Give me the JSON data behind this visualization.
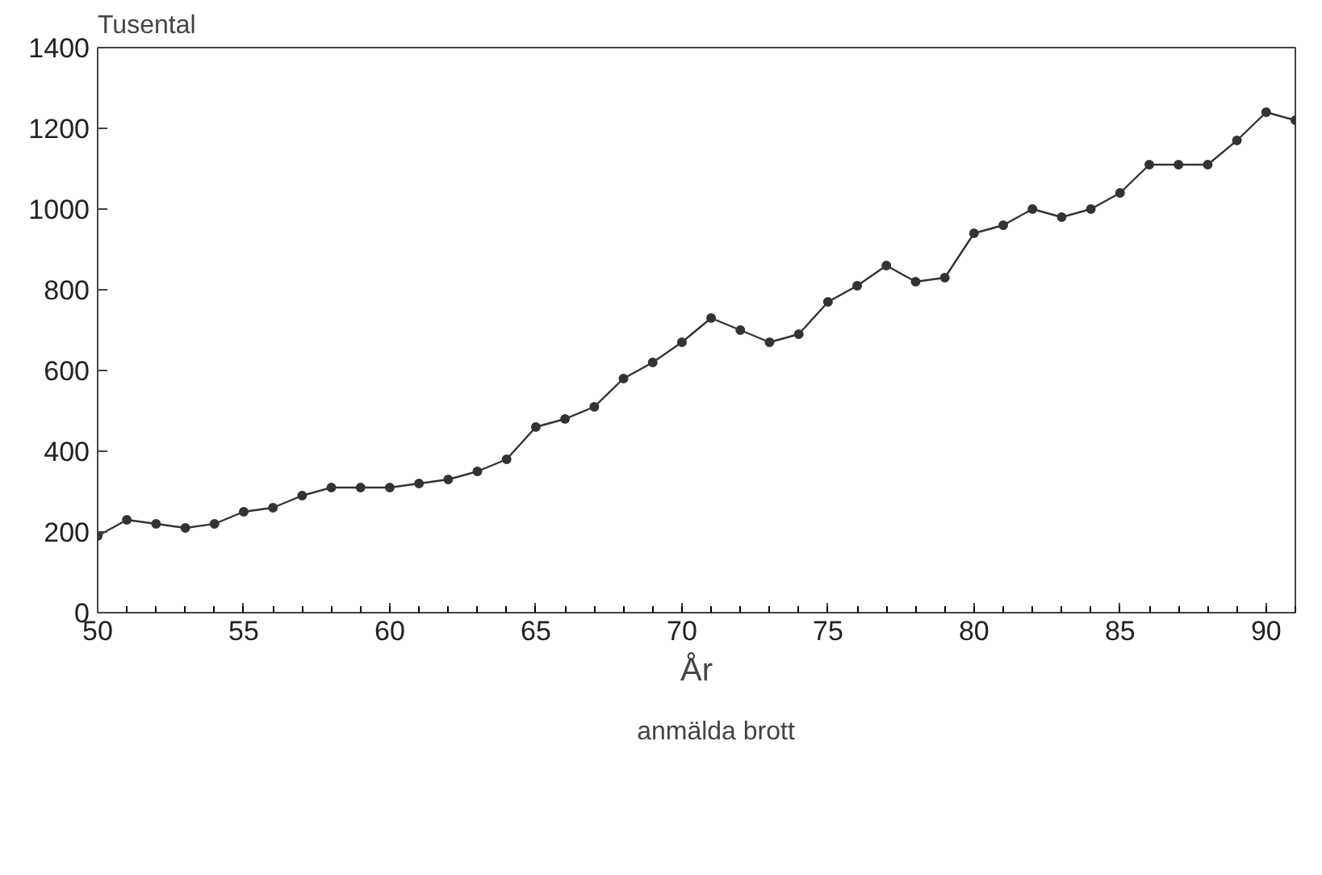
{
  "chart_data": {
    "type": "line",
    "ylabel": "Tusental",
    "xlabel": "År",
    "x": [
      50,
      51,
      52,
      53,
      54,
      55,
      56,
      57,
      58,
      59,
      60,
      61,
      62,
      63,
      64,
      65,
      66,
      67,
      68,
      69,
      70,
      71,
      72,
      73,
      74,
      75,
      76,
      77,
      78,
      79,
      80,
      81,
      82,
      83,
      84,
      85,
      86,
      87,
      88,
      89,
      90,
      91
    ],
    "series": [
      {
        "name": "anmälda brott",
        "color": "#333333",
        "values": [
          190,
          230,
          220,
          210,
          220,
          250,
          260,
          290,
          310,
          310,
          310,
          320,
          330,
          350,
          380,
          460,
          480,
          510,
          580,
          620,
          670,
          730,
          700,
          670,
          690,
          770,
          810,
          860,
          820,
          830,
          940,
          960,
          1000,
          980,
          1000,
          1040,
          1110,
          1110,
          1110,
          1170,
          1240,
          1220
        ]
      }
    ],
    "xlim": [
      50,
      91
    ],
    "xticks": [
      50,
      55,
      60,
      65,
      70,
      75,
      80,
      85,
      90
    ],
    "ylim": [
      0,
      1400
    ],
    "yticks": [
      0,
      200,
      400,
      600,
      800,
      1000,
      1200,
      1400
    ],
    "marker": "circle",
    "line_style": "solid",
    "legend": "bottom",
    "grid": false
  }
}
